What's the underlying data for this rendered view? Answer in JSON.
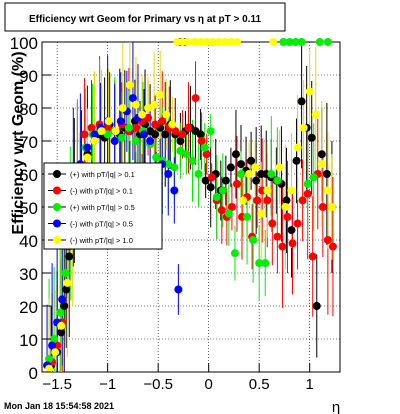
{
  "title": "Efficiency wrt Geom for Primary vs   η at pT > 0.11",
  "footer_date": "Mon Jan 18 15:54:58 2021",
  "chart_data": {
    "type": "scatter",
    "title": "Efficiency wrt Geom for Primary vs   η at pT > 0.11",
    "xlabel": "η",
    "ylabel": "Efficiency wrt Geom (%)",
    "xlim": [
      -1.65,
      1.3
    ],
    "ylim": [
      0,
      100
    ],
    "xticks": [
      -1.5,
      -1,
      -0.5,
      0,
      0.5,
      1
    ],
    "xtick_labels": [
      "−1.5",
      "−1",
      "−0.5",
      "0",
      "0.5",
      "1"
    ],
    "yticks": [
      0,
      10,
      20,
      30,
      40,
      50,
      60,
      70,
      80,
      90,
      100
    ],
    "ytick_labels": [
      "0",
      "10",
      "20",
      "30",
      "40",
      "50",
      "60",
      "70",
      "80",
      "90",
      "100"
    ],
    "grid": true,
    "legend_position": "left",
    "series": [
      {
        "name": "(+) with pT/|q| > 0.1",
        "color": "#000000",
        "points": [
          [
            -1.56,
            2
          ],
          [
            -1.5,
            6
          ],
          [
            -1.46,
            12
          ],
          [
            -1.43,
            20
          ],
          [
            -1.41,
            25
          ],
          [
            -1.38,
            35
          ],
          [
            -1.33,
            55
          ],
          [
            -1.26,
            60
          ],
          [
            -1.2,
            66
          ],
          [
            -1.13,
            70
          ],
          [
            -1.08,
            72
          ],
          [
            -1.03,
            71
          ],
          [
            -0.98,
            75
          ],
          [
            -0.93,
            73
          ],
          [
            -0.88,
            72
          ],
          [
            -0.83,
            74
          ],
          [
            -0.78,
            73
          ],
          [
            -0.73,
            76
          ],
          [
            -0.68,
            72
          ],
          [
            -0.63,
            75
          ],
          [
            -0.58,
            73
          ],
          [
            -0.53,
            72
          ],
          [
            -0.48,
            74
          ],
          [
            -0.43,
            72
          ],
          [
            -0.38,
            75
          ],
          [
            -0.33,
            72
          ],
          [
            -0.28,
            70
          ],
          [
            -0.23,
            73
          ],
          [
            -0.18,
            74
          ],
          [
            -0.13,
            73
          ],
          [
            -0.08,
            72
          ],
          [
            -0.03,
            58
          ],
          [
            0.02,
            56
          ],
          [
            0.07,
            60
          ],
          [
            0.12,
            55
          ],
          [
            0.17,
            58
          ],
          [
            0.22,
            62
          ],
          [
            0.27,
            66
          ],
          [
            0.32,
            63
          ],
          [
            0.37,
            61
          ],
          [
            0.42,
            64
          ],
          [
            0.47,
            58
          ],
          [
            0.52,
            60
          ],
          [
            0.57,
            60
          ],
          [
            0.62,
            59
          ],
          [
            0.67,
            58
          ],
          [
            0.72,
            57
          ],
          [
            0.77,
            52
          ],
          [
            0.82,
            43
          ],
          [
            0.87,
            64
          ],
          [
            0.92,
            82
          ],
          [
            0.97,
            74
          ],
          [
            1.02,
            71
          ],
          [
            1.07,
            20
          ],
          [
            1.12,
            66
          ],
          [
            1.17,
            60
          ],
          [
            1.22,
            50
          ]
        ]
      },
      {
        "name": "(-) with pT/|q| > 0.1",
        "color": "#ff0000",
        "points": [
          [
            -1.55,
            3
          ],
          [
            -1.5,
            8
          ],
          [
            -1.45,
            15
          ],
          [
            -1.38,
            38
          ],
          [
            -1.3,
            62
          ],
          [
            -1.23,
            72
          ],
          [
            -1.16,
            74
          ],
          [
            -1.08,
            75
          ],
          [
            -1.0,
            74
          ],
          [
            -0.93,
            73
          ],
          [
            -0.86,
            75
          ],
          [
            -0.79,
            73
          ],
          [
            -0.72,
            74
          ],
          [
            -0.66,
            76
          ],
          [
            -0.6,
            77
          ],
          [
            -0.53,
            75
          ],
          [
            -0.46,
            76
          ],
          [
            -0.39,
            74
          ],
          [
            -0.33,
            73
          ],
          [
            -0.26,
            72
          ],
          [
            -0.2,
            74
          ],
          [
            -0.13,
            83
          ],
          [
            -0.07,
            70
          ],
          [
            -0.02,
            66
          ],
          [
            0.03,
            59
          ],
          [
            0.08,
            52
          ],
          [
            0.13,
            49
          ],
          [
            0.18,
            47
          ],
          [
            0.23,
            50
          ],
          [
            0.28,
            57
          ],
          [
            0.33,
            47
          ],
          [
            0.38,
            53
          ],
          [
            0.43,
            41
          ],
          [
            0.48,
            52
          ],
          [
            0.53,
            55
          ],
          [
            0.58,
            52
          ],
          [
            0.63,
            45
          ],
          [
            0.68,
            41
          ],
          [
            0.73,
            38
          ],
          [
            0.78,
            47
          ],
          [
            0.83,
            39
          ],
          [
            0.88,
            45
          ],
          [
            0.93,
            52
          ],
          [
            0.98,
            54
          ],
          [
            1.03,
            35
          ],
          [
            1.08,
            60
          ],
          [
            1.13,
            50
          ],
          [
            1.18,
            40
          ],
          [
            1.23,
            38
          ]
        ]
      },
      {
        "name": "(+) with pT/|q| > 0.5",
        "color": "#00ee00",
        "points": [
          [
            -1.58,
            4
          ],
          [
            -1.53,
            10
          ],
          [
            -1.47,
            18
          ],
          [
            -1.42,
            30
          ],
          [
            -1.37,
            45
          ],
          [
            -1.3,
            62
          ],
          [
            -1.22,
            68
          ],
          [
            -1.15,
            72
          ],
          [
            -1.08,
            73
          ],
          [
            -1.0,
            72
          ],
          [
            -0.93,
            73
          ],
          [
            -0.86,
            71
          ],
          [
            -0.79,
            74
          ],
          [
            -0.72,
            70
          ],
          [
            -0.65,
            73
          ],
          [
            -0.58,
            69
          ],
          [
            -0.52,
            65
          ],
          [
            -0.46,
            64
          ],
          [
            -0.4,
            63
          ],
          [
            -0.34,
            62
          ],
          [
            -0.28,
            67
          ],
          [
            -0.22,
            66
          ],
          [
            -0.16,
            64
          ],
          [
            -0.1,
            60
          ],
          [
            -0.04,
            68
          ],
          [
            0.02,
            73
          ],
          [
            0.08,
            53
          ],
          [
            0.14,
            55
          ],
          [
            0.2,
            48
          ],
          [
            0.26,
            36
          ],
          [
            0.32,
            60
          ],
          [
            0.38,
            47
          ],
          [
            0.44,
            40
          ],
          [
            0.5,
            33
          ],
          [
            0.56,
            33
          ],
          [
            0.62,
            60
          ],
          [
            0.68,
            58
          ],
          [
            0.74,
            100
          ],
          [
            0.8,
            100
          ],
          [
            0.86,
            100
          ],
          [
            0.92,
            100
          ],
          [
            0.98,
            57
          ],
          [
            1.04,
            59
          ],
          [
            1.1,
            100
          ],
          [
            1.18,
            100
          ]
        ]
      },
      {
        "name": "(-) with pT/|q| > 0.5",
        "color": "#0000ff",
        "points": [
          [
            -1.6,
            2
          ],
          [
            -1.55,
            8
          ],
          [
            -1.5,
            15
          ],
          [
            -1.45,
            22
          ],
          [
            -1.4,
            40
          ],
          [
            -1.34,
            56
          ],
          [
            -1.27,
            63
          ],
          [
            -1.2,
            68
          ],
          [
            -1.13,
            72
          ],
          [
            -1.07,
            74
          ],
          [
            -1.0,
            76
          ],
          [
            -0.93,
            70
          ],
          [
            -0.87,
            76
          ],
          [
            -0.81,
            79
          ],
          [
            -0.75,
            83
          ],
          [
            -0.7,
            77
          ],
          [
            -0.64,
            72
          ],
          [
            -0.58,
            70
          ],
          [
            -0.52,
            58
          ],
          [
            -0.46,
            63
          ],
          [
            -0.4,
            60
          ],
          [
            -0.34,
            55
          ],
          [
            -0.3,
            25
          ],
          [
            -0.28,
            100
          ],
          [
            -0.24,
            100
          ]
        ]
      },
      {
        "name": "(-) with pT/|q| > 1.0",
        "color": "#ffff00",
        "points": [
          [
            -1.58,
            1
          ],
          [
            -1.52,
            6
          ],
          [
            -1.46,
            14
          ],
          [
            -1.4,
            27
          ],
          [
            -1.35,
            40
          ],
          [
            -1.28,
            55
          ],
          [
            -1.2,
            65
          ],
          [
            -1.13,
            70
          ],
          [
            -1.06,
            73
          ],
          [
            -0.99,
            76
          ],
          [
            -0.92,
            73
          ],
          [
            -0.85,
            80
          ],
          [
            -0.78,
            87
          ],
          [
            -0.72,
            81
          ],
          [
            -0.66,
            78
          ],
          [
            -0.6,
            80
          ],
          [
            -0.54,
            81
          ],
          [
            -0.48,
            84
          ],
          [
            -0.42,
            78
          ],
          [
            -0.36,
            75
          ],
          [
            -0.31,
            100
          ],
          [
            -0.26,
            100
          ],
          [
            -0.21,
            100
          ],
          [
            -0.14,
            100
          ],
          [
            -0.08,
            100
          ],
          [
            -0.02,
            100
          ],
          [
            0.04,
            100
          ],
          [
            0.1,
            100
          ],
          [
            0.16,
            100
          ],
          [
            0.22,
            100
          ],
          [
            0.28,
            100
          ],
          [
            0.34,
            52
          ],
          [
            0.4,
            60
          ],
          [
            0.46,
            62
          ],
          [
            0.52,
            48
          ],
          [
            0.58,
            55
          ],
          [
            0.64,
            100
          ],
          [
            0.7,
            62
          ],
          [
            0.76,
            50
          ],
          [
            0.82,
            55
          ],
          [
            0.88,
            68
          ],
          [
            0.94,
            74
          ],
          [
            1.0,
            85
          ],
          [
            1.06,
            78
          ],
          [
            1.12,
            63
          ],
          [
            1.18,
            55
          ],
          [
            1.22,
            50
          ]
        ]
      }
    ]
  }
}
